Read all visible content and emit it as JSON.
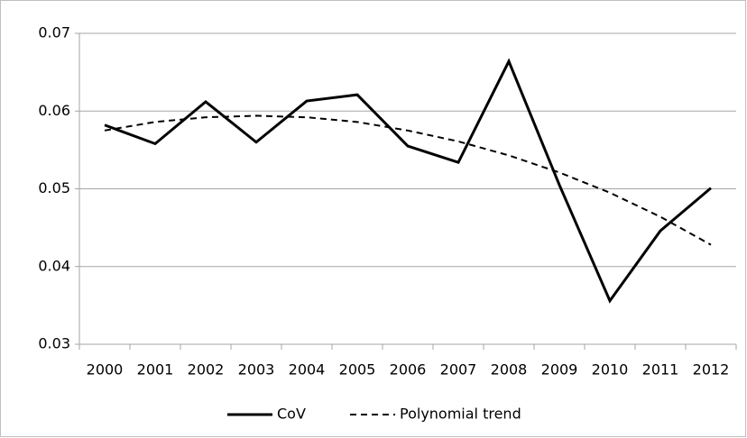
{
  "chart_data": {
    "type": "line",
    "categories": [
      "2000",
      "2001",
      "2002",
      "2003",
      "2004",
      "2005",
      "2006",
      "2007",
      "2008",
      "2009",
      "2010",
      "2011",
      "2012"
    ],
    "series": [
      {
        "name": "CoV",
        "color": "#000000",
        "style": "solid",
        "values": [
          0.0582,
          0.0558,
          0.0612,
          0.056,
          0.0613,
          0.0621,
          0.0555,
          0.0534,
          0.0664,
          0.0505,
          0.0356,
          0.0446,
          0.0501
        ]
      },
      {
        "name": "Polynomial trend",
        "color": "#000000",
        "style": "dashed",
        "values": [
          0.0575,
          0.0586,
          0.0592,
          0.0594,
          0.0592,
          0.0586,
          0.0575,
          0.0561,
          0.0543,
          0.0521,
          0.0495,
          0.0464,
          0.0428
        ]
      }
    ],
    "ylim": [
      0.03,
      0.07
    ],
    "yticks": [
      0.03,
      0.04,
      0.05,
      0.06,
      0.07
    ],
    "grid": true,
    "legend": "bottom"
  }
}
